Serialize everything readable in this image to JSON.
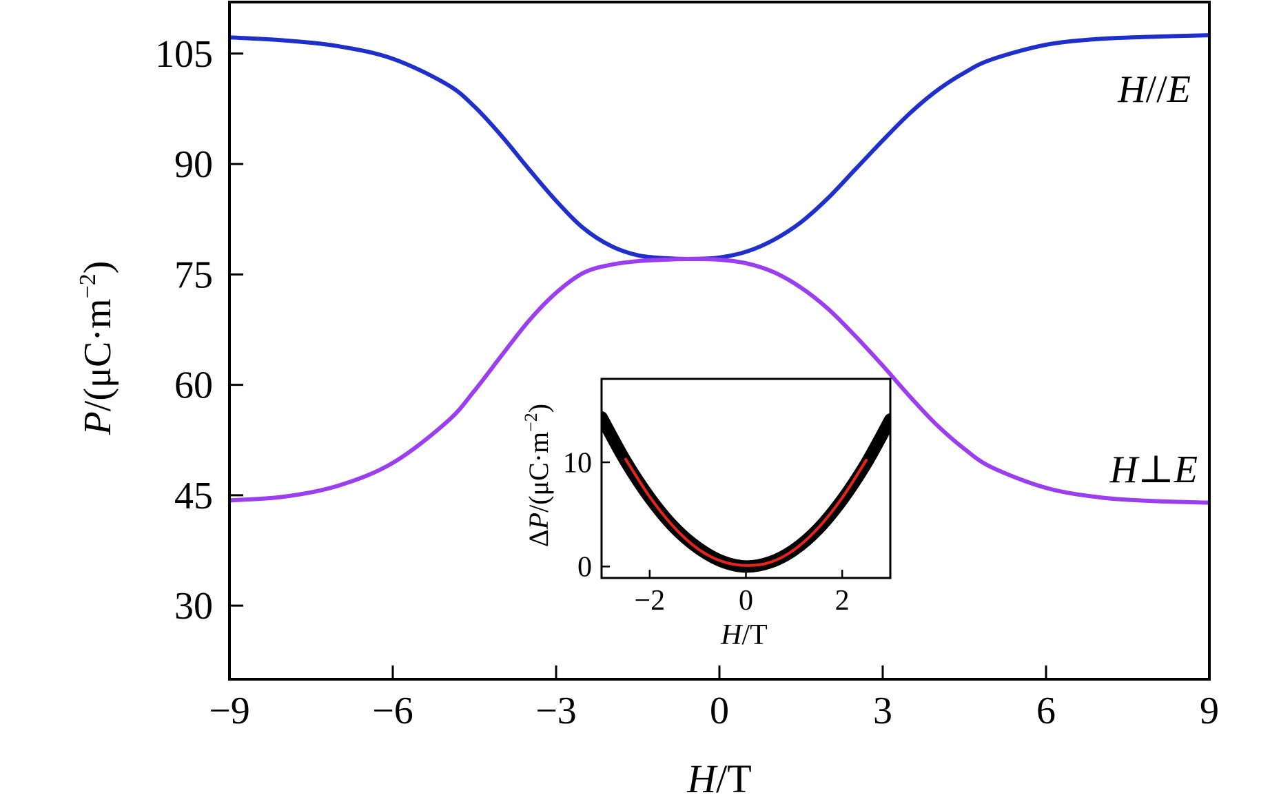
{
  "chart_data": [
    {
      "type": "line",
      "xlabel_var": "H",
      "xlabel_unit": "/T",
      "ylabel_var": "P",
      "ylabel_unit": "/(μC·m",
      "ylabel_sup": "−2",
      "ylabel_close": ")",
      "xlim": [
        -9,
        9
      ],
      "ylim": [
        20,
        112
      ],
      "xticks": [
        -9,
        -6,
        -3,
        0,
        3,
        6,
        9
      ],
      "xtick_labels": [
        "−9",
        "−6",
        "−3",
        "0",
        "3",
        "6",
        "9"
      ],
      "yticks": [
        30,
        45,
        60,
        75,
        90,
        105
      ],
      "ytick_labels": [
        "30",
        "45",
        "60",
        "75",
        "90",
        "105"
      ],
      "grid": false,
      "series": [
        {
          "name": "H//E",
          "label_var1": "H",
          "label_sym": "//",
          "label_var2": "E",
          "color": "#1f2fcc",
          "x": [
            -9,
            -8,
            -7,
            -6,
            -5,
            -4.5,
            -4,
            -3.5,
            -3,
            -2.5,
            -2,
            -1.5,
            -1,
            -0.5,
            0,
            0.5,
            1,
            1.5,
            2,
            2.5,
            3,
            3.5,
            4,
            4.5,
            5,
            6,
            7,
            8,
            9
          ],
          "y": [
            107.2,
            106.8,
            106,
            104.3,
            100.8,
            97.8,
            93.8,
            89.3,
            85,
            81.3,
            78.9,
            77.6,
            77.2,
            77.1,
            77.3,
            78.1,
            79.7,
            82.1,
            85.4,
            89.3,
            93.2,
            96.9,
            100,
            102.4,
            104.2,
            106.2,
            107,
            107.3,
            107.5
          ]
        },
        {
          "name": "H⊥E",
          "label_var1": "H",
          "label_sym": "⊥",
          "label_var2": "E",
          "color": "#9b3ef0",
          "x": [
            -9,
            -8,
            -7,
            -6,
            -5,
            -4.5,
            -4,
            -3.5,
            -3,
            -2.5,
            -2,
            -1.5,
            -1,
            -0.5,
            0,
            0.5,
            1,
            1.5,
            2,
            2.5,
            3,
            3.5,
            4,
            4.5,
            5,
            6,
            7,
            8,
            9
          ],
          "y": [
            44.3,
            44.8,
            46.3,
            49.4,
            55,
            59.2,
            64,
            68.7,
            72.5,
            75.2,
            76.3,
            76.8,
            77,
            77.1,
            77,
            76.5,
            75.3,
            73.2,
            70.3,
            66.6,
            62.6,
            58.4,
            54.5,
            51.3,
            48.8,
            46,
            44.7,
            44.2,
            44
          ]
        }
      ]
    },
    {
      "type": "line",
      "xlabel_var": "H",
      "xlabel_unit": "/T",
      "ylabel_prefix": "Δ",
      "ylabel_var": "P",
      "ylabel_unit": "/(μC·m",
      "ylabel_sup": "−2",
      "ylabel_close": ")",
      "xlim": [
        -3,
        3
      ],
      "ylim": [
        -1.1,
        18
      ],
      "xticks": [
        -2,
        0,
        2
      ],
      "xtick_labels": [
        "−2",
        "0",
        "2"
      ],
      "yticks": [
        0,
        10
      ],
      "ytick_labels": [
        "0",
        "10"
      ],
      "grid": false,
      "series": [
        {
          "color": "#000000",
          "x": [
            -3,
            -2.5,
            -2,
            -1.5,
            -1,
            -0.5,
            0,
            0.5,
            1,
            1.5,
            2,
            2.5,
            3
          ],
          "y": [
            14.3,
            10.1,
            6.6,
            3.8,
            1.8,
            0.5,
            0,
            0.4,
            1.6,
            3.6,
            6.4,
            9.9,
            14.1
          ]
        },
        {
          "color": "#e8231b",
          "x": [
            -2.5,
            -2,
            -1.5,
            -1,
            -0.5,
            0,
            0.5,
            1,
            1.5,
            2,
            2.5
          ],
          "y": [
            10.3,
            6.7,
            3.8,
            1.7,
            0.5,
            0.1,
            0.4,
            1.6,
            3.7,
            6.6,
            10.2
          ]
        }
      ]
    }
  ]
}
